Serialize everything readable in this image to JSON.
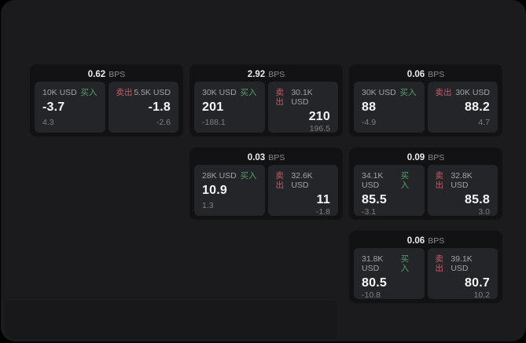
{
  "labels": {
    "bps_suffix": "BPS",
    "buy": "买入",
    "sell": "卖出"
  },
  "colors": {
    "buy": "#52a06c",
    "sell": "#c75a68",
    "panel_bg": "#1b1b1d",
    "card_bg": "#121214",
    "tile_bg": "#242528"
  },
  "cards": [
    {
      "row": 1,
      "col": 1,
      "bps": "0.62",
      "buy": {
        "amount": "10K USD",
        "value": "-3.7",
        "change": "4.3"
      },
      "sell": {
        "amount": "5.5K USD",
        "value": "-1.8",
        "change": "-2.6"
      }
    },
    {
      "row": 1,
      "col": 2,
      "bps": "2.92",
      "buy": {
        "amount": "30K USD",
        "value": "201",
        "change": "-188.1"
      },
      "sell": {
        "amount": "30.1K USD",
        "value": "210",
        "change": "196.5"
      }
    },
    {
      "row": 1,
      "col": 3,
      "bps": "0.06",
      "buy": {
        "amount": "30K USD",
        "value": "88",
        "change": "-4.9"
      },
      "sell": {
        "amount": "30K USD",
        "value": "88.2",
        "change": "4.7"
      }
    },
    {
      "row": 2,
      "col": 2,
      "bps": "0.03",
      "buy": {
        "amount": "28K USD",
        "value": "10.9",
        "change": "1.3"
      },
      "sell": {
        "amount": "32.6K USD",
        "value": "11",
        "change": "-1.8"
      }
    },
    {
      "row": 2,
      "col": 3,
      "bps": "0.09",
      "buy": {
        "amount": "34.1K USD",
        "value": "85.5",
        "change": "-3.1"
      },
      "sell": {
        "amount": "32.8K USD",
        "value": "85.8",
        "change": "3.0"
      }
    },
    {
      "row": 3,
      "col": 3,
      "bps": "0.06",
      "buy": {
        "amount": "31.8K USD",
        "value": "80.5",
        "change": "-10.8"
      },
      "sell": {
        "amount": "39.1K USD",
        "value": "80.7",
        "change": "10.2"
      }
    }
  ]
}
